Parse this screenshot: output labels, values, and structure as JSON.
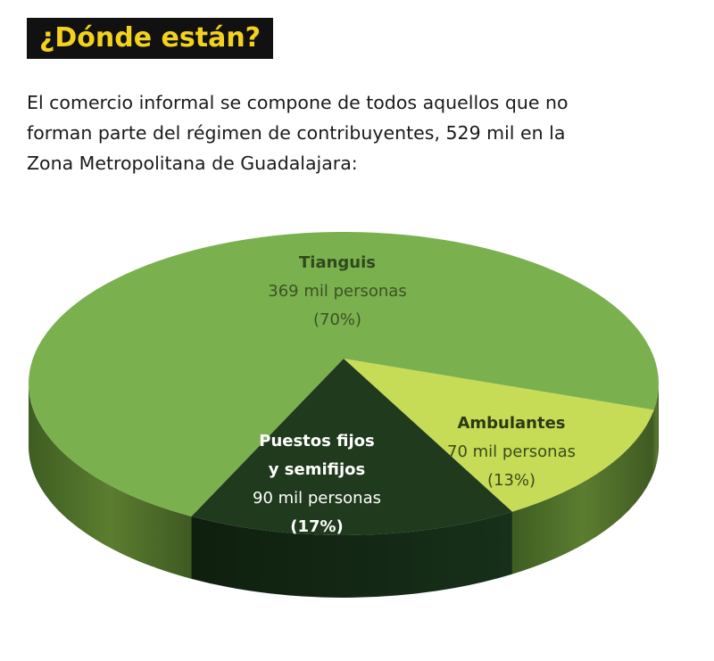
{
  "heading": "¿Dónde están?",
  "intro_lines": [
    "El comercio informal se compone de todos aquellos que no",
    "forman parte del régimen de contribuyentes, 529 mil en la",
    "Zona Metropolitana de Guadalajara:"
  ],
  "colors": {
    "title_bg": "#111111",
    "title_text": "#f2d21c",
    "tianguis": "#7bb04e",
    "ambulantes": "#c6dc57",
    "puestos": "#1f3a1c",
    "side_dark": "#4f6e2a"
  },
  "chart_data": {
    "type": "pie",
    "unit": "mil personas",
    "slices": [
      {
        "name": "Tianguis",
        "value": 369,
        "percent": 70,
        "label_lines": [
          "Tianguis",
          "369 mil personas",
          "(70%)"
        ]
      },
      {
        "name": "Ambulantes",
        "value": 70,
        "percent": 13,
        "label_lines": [
          "Ambulantes",
          "70 mil personas",
          "(13%)"
        ]
      },
      {
        "name": "Puestos fijos y semifijos",
        "value": 90,
        "percent": 17,
        "label_lines": [
          "Puestos fijos",
          "y semifijos",
          "90 mil personas",
          "(17%)"
        ]
      }
    ]
  }
}
